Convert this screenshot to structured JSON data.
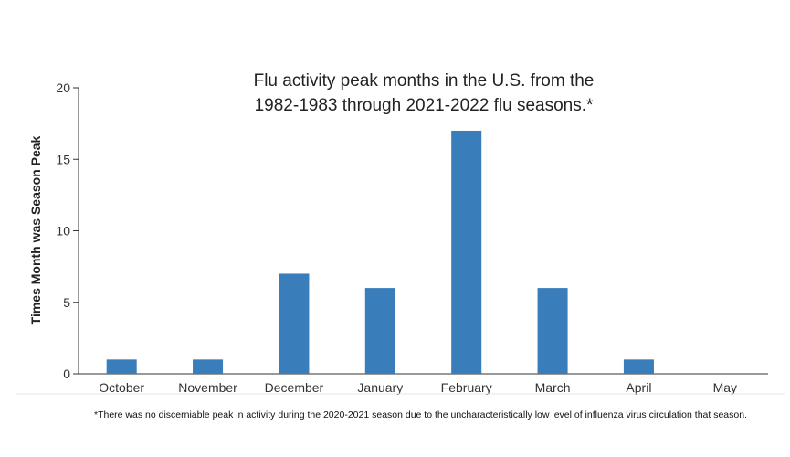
{
  "chart_data": {
    "type": "bar",
    "title_lines": [
      "Flu activity peak months in the U.S. from the",
      "1982-1983 through 2021-2022 flu seasons.*"
    ],
    "xlabel": "",
    "ylabel": "Times Month was Season Peak",
    "categories": [
      "October",
      "November",
      "December",
      "January",
      "February",
      "March",
      "April",
      "May"
    ],
    "values": [
      1,
      1,
      7,
      6,
      17,
      6,
      1,
      0
    ],
    "ylim": [
      0,
      20
    ],
    "yticks": [
      0,
      5,
      10,
      15,
      20
    ],
    "bar_color": "#3a7dbb",
    "grid": false,
    "footnote": "*There was no discerniable peak in activity during the 2020-2021 season due to the uncharacteristically low level of influenza virus circulation that season."
  }
}
